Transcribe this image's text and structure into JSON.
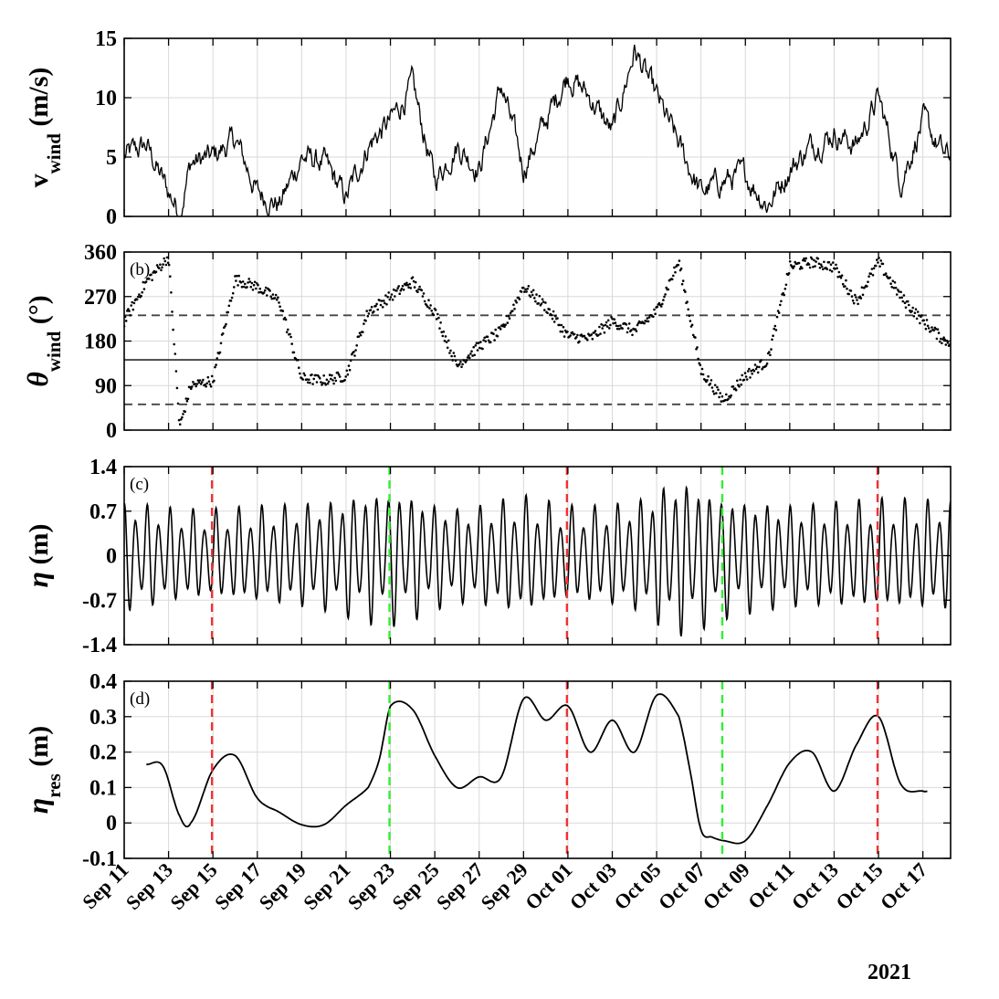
{
  "chart_data": [
    {
      "type": "line",
      "panel_label": "",
      "ylabel_main": "v",
      "ylabel_sub": "wind",
      "ylabel_unit": " (m/s)",
      "ylim": [
        0,
        15
      ],
      "yticks": [
        "0",
        "5",
        "10",
        "15"
      ],
      "grid": true,
      "series": [
        {
          "x": [
            "2021-09-11",
            "2021-09-12",
            "2021-09-13",
            "2021-09-13T12",
            "2021-09-14",
            "2021-09-15",
            "2021-09-16",
            "2021-09-17",
            "2021-09-18",
            "2021-09-19",
            "2021-09-20",
            "2021-09-21",
            "2021-09-22",
            "2021-09-23",
            "2021-09-24",
            "2021-09-25",
            "2021-09-26",
            "2021-09-27",
            "2021-09-28",
            "2021-09-29",
            "2021-09-30",
            "2021-10-01",
            "2021-10-02",
            "2021-10-03",
            "2021-10-04",
            "2021-10-05",
            "2021-10-06",
            "2021-10-07",
            "2021-10-08",
            "2021-10-09",
            "2021-10-10",
            "2021-10-11",
            "2021-10-12",
            "2021-10-13",
            "2021-10-14",
            "2021-10-15",
            "2021-10-16",
            "2021-10-17",
            "2021-10-18"
          ],
          "y": [
            5,
            6,
            2,
            0.5,
            4.5,
            5,
            6.5,
            2,
            1,
            5,
            4.5,
            1.5,
            6,
            8,
            11,
            3,
            6,
            4,
            11,
            4,
            8,
            12,
            10,
            7,
            14,
            10,
            6,
            2,
            3,
            3.5,
            1,
            4,
            6,
            7,
            6,
            10,
            3,
            8,
            5
          ]
        }
      ]
    },
    {
      "type": "scatter",
      "panel_label": "(b)",
      "ylabel_main": "θ",
      "ylabel_sub": "wind",
      "ylabel_unit": " (°)",
      "ylim": [
        0,
        360
      ],
      "yticks": [
        "0",
        "90",
        "180",
        "270",
        "360"
      ],
      "grid": true,
      "reference_lines": [
        {
          "y": 232,
          "style": "dashed"
        },
        {
          "y": 142,
          "style": "solid"
        },
        {
          "y": 52,
          "style": "dashed"
        }
      ],
      "series": [
        {
          "x": [
            "2021-09-11",
            "2021-09-12",
            "2021-09-13",
            "2021-09-13T12",
            "2021-09-14",
            "2021-09-15",
            "2021-09-16",
            "2021-09-17",
            "2021-09-18",
            "2021-09-19",
            "2021-09-20",
            "2021-09-21",
            "2021-09-22",
            "2021-09-23",
            "2021-09-24",
            "2021-09-25",
            "2021-09-26",
            "2021-09-27",
            "2021-09-28",
            "2021-09-29",
            "2021-09-30",
            "2021-10-01",
            "2021-10-02",
            "2021-10-03",
            "2021-10-04",
            "2021-10-05",
            "2021-10-06",
            "2021-10-07",
            "2021-10-08",
            "2021-10-09",
            "2021-10-10",
            "2021-10-11",
            "2021-10-12",
            "2021-10-13",
            "2021-10-14",
            "2021-10-15",
            "2021-10-16",
            "2021-10-17",
            "2021-10-18"
          ],
          "y": [
            220,
            300,
            350,
            5,
            90,
            100,
            305,
            290,
            260,
            105,
            100,
            110,
            240,
            270,
            300,
            240,
            130,
            170,
            200,
            290,
            250,
            190,
            185,
            220,
            200,
            240,
            340,
            120,
            60,
            110,
            140,
            330,
            340,
            330,
            260,
            340,
            270,
            220,
            180
          ]
        }
      ]
    },
    {
      "type": "line",
      "panel_label": "(c)",
      "ylabel_main": "η",
      "ylabel_sub": "",
      "ylabel_unit": " (m)",
      "ylim": [
        -1.4,
        1.4
      ],
      "yticks": [
        "-1.4",
        "-0.7",
        "0",
        "0.7",
        "1.4"
      ],
      "grid": true,
      "series": [
        {
          "x_start": "2021-09-11",
          "x_end": "2021-10-18",
          "note_semidiurnal_tide": true,
          "envelope_x": [
            "2021-09-11",
            "2021-09-14",
            "2021-09-17",
            "2021-09-20",
            "2021-09-23",
            "2021-09-26",
            "2021-09-29",
            "2021-10-01",
            "2021-10-04",
            "2021-10-06",
            "2021-10-08",
            "2021-10-11",
            "2021-10-15",
            "2021-10-18"
          ],
          "envelope_amplitude": [
            0.85,
            0.7,
            0.75,
            0.85,
            1.05,
            0.75,
            0.9,
            0.75,
            0.85,
            1.2,
            0.95,
            0.8,
            0.85,
            0.85
          ]
        }
      ],
      "event_lines": [
        {
          "x": "2021-09-14T23",
          "color": "#ee3333"
        },
        {
          "x": "2021-09-22T23",
          "color": "#33ee33"
        },
        {
          "x": "2021-09-30T23",
          "color": "#ee3333"
        },
        {
          "x": "2021-10-07T23",
          "color": "#33ee33"
        },
        {
          "x": "2021-10-14T23",
          "color": "#ee3333"
        }
      ]
    },
    {
      "type": "line",
      "panel_label": "(d)",
      "ylabel_main": "η",
      "ylabel_sub": "res",
      "ylabel_unit": " (m)",
      "ylim": [
        -0.1,
        0.4
      ],
      "yticks": [
        "-0.1",
        "0",
        "0.1",
        "0.2",
        "0.3",
        "0.4"
      ],
      "grid": true,
      "series": [
        {
          "x": [
            "2021-09-12",
            "2021-09-12T18",
            "2021-09-13T12",
            "2021-09-14",
            "2021-09-15",
            "2021-09-16",
            "2021-09-17",
            "2021-09-18",
            "2021-09-19",
            "2021-09-20",
            "2021-09-21",
            "2021-09-22",
            "2021-09-22T12",
            "2021-09-23",
            "2021-09-24",
            "2021-09-25",
            "2021-09-26",
            "2021-09-27",
            "2021-09-28",
            "2021-09-29",
            "2021-09-30",
            "2021-10-01",
            "2021-10-02",
            "2021-10-03",
            "2021-10-04",
            "2021-10-05",
            "2021-10-06",
            "2021-10-06T12",
            "2021-10-07",
            "2021-10-07T12",
            "2021-10-08",
            "2021-10-09",
            "2021-10-10",
            "2021-10-11",
            "2021-10-12",
            "2021-10-13",
            "2021-10-14",
            "2021-10-15",
            "2021-10-16",
            "2021-10-17",
            "2021-10-17T06"
          ],
          "y": [
            0.165,
            0.16,
            0.02,
            0.0,
            0.15,
            0.19,
            0.07,
            0.03,
            -0.005,
            -0.005,
            0.05,
            0.1,
            0.18,
            0.33,
            0.32,
            0.19,
            0.1,
            0.13,
            0.13,
            0.35,
            0.29,
            0.33,
            0.2,
            0.29,
            0.2,
            0.36,
            0.3,
            0.15,
            -0.02,
            -0.04,
            -0.05,
            -0.05,
            0.05,
            0.17,
            0.2,
            0.09,
            0.22,
            0.3,
            0.11,
            0.09,
            0.09
          ]
        }
      ],
      "event_lines": [
        {
          "x": "2021-09-14T23",
          "color": "#ee3333"
        },
        {
          "x": "2021-09-22T23",
          "color": "#33ee33"
        },
        {
          "x": "2021-09-30T23",
          "color": "#ee3333"
        },
        {
          "x": "2021-10-07T23",
          "color": "#33ee33"
        },
        {
          "x": "2021-10-14T23",
          "color": "#ee3333"
        }
      ]
    }
  ],
  "x_axis": {
    "start": "2021-09-11",
    "end": "2021-10-18T06",
    "tick_dates": [
      "2021-09-11",
      "2021-09-13",
      "2021-09-15",
      "2021-09-17",
      "2021-09-19",
      "2021-09-21",
      "2021-09-23",
      "2021-09-25",
      "2021-09-27",
      "2021-09-29",
      "2021-10-01",
      "2021-10-03",
      "2021-10-05",
      "2021-10-07",
      "2021-10-09",
      "2021-10-11",
      "2021-10-13",
      "2021-10-15",
      "2021-10-17"
    ],
    "tick_labels": [
      "Sep 11",
      "Sep 13",
      "Sep 15",
      "Sep 17",
      "Sep 19",
      "Sep 21",
      "Sep 23",
      "Sep 25",
      "Sep 27",
      "Sep 29",
      "Oct 01",
      "Oct 03",
      "Oct 05",
      "Oct 07",
      "Oct 09",
      "Oct 11",
      "Oct 13",
      "Oct 15",
      "Oct 17"
    ],
    "year_label": "2021"
  },
  "colors": {
    "line": "#000000",
    "grid": "#d9d9d9",
    "red_event": "#ee3333",
    "green_event": "#33ee33"
  }
}
